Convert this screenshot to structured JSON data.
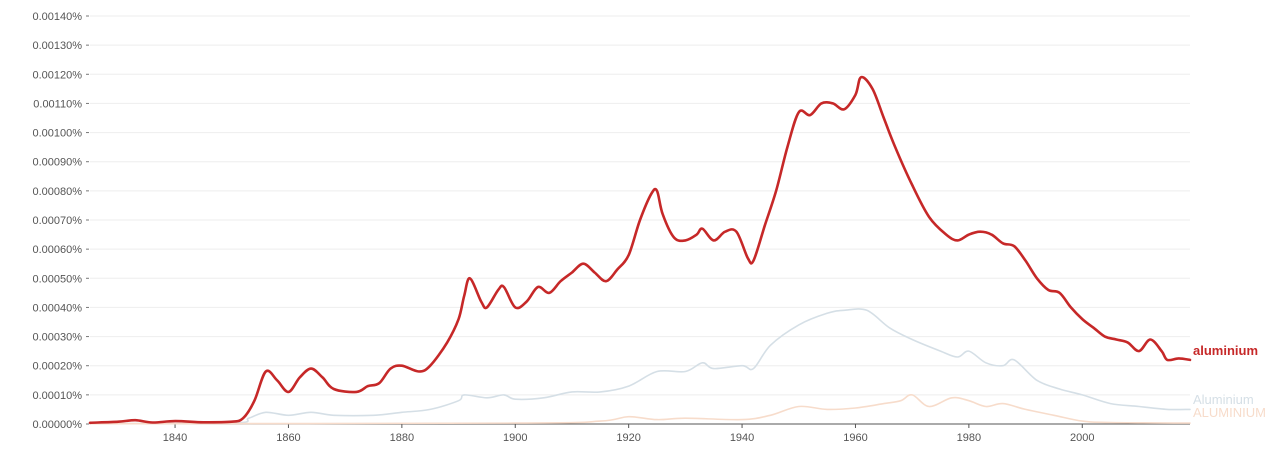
{
  "chart_data": {
    "type": "line",
    "xlim": [
      1825,
      2019
    ],
    "ylim": [
      0,
      0.0014
    ],
    "grid": true,
    "y_ticks": [
      {
        "value": 0,
        "label": "0.00000%"
      },
      {
        "value": 0.0001,
        "label": "0.00010%"
      },
      {
        "value": 0.0002,
        "label": "0.00020%"
      },
      {
        "value": 0.0003,
        "label": "0.00030%"
      },
      {
        "value": 0.0004,
        "label": "0.00040%"
      },
      {
        "value": 0.0005,
        "label": "0.00050%"
      },
      {
        "value": 0.0006,
        "label": "0.00060%"
      },
      {
        "value": 0.0007,
        "label": "0.00070%"
      },
      {
        "value": 0.0008,
        "label": "0.00080%"
      },
      {
        "value": 0.0009,
        "label": "0.00090%"
      },
      {
        "value": 0.001,
        "label": "0.00100%"
      },
      {
        "value": 0.0011,
        "label": "0.00110%"
      },
      {
        "value": 0.0012,
        "label": "0.00120%"
      },
      {
        "value": 0.0013,
        "label": "0.00130%"
      },
      {
        "value": 0.0014,
        "label": "0.00140%"
      }
    ],
    "x_ticks": [
      {
        "value": 1840,
        "label": "1840"
      },
      {
        "value": 1860,
        "label": "1860"
      },
      {
        "value": 1880,
        "label": "1880"
      },
      {
        "value": 1900,
        "label": "1900"
      },
      {
        "value": 1920,
        "label": "1920"
      },
      {
        "value": 1940,
        "label": "1940"
      },
      {
        "value": 1960,
        "label": "1960"
      },
      {
        "value": 1980,
        "label": "1980"
      },
      {
        "value": 2000,
        "label": "2000"
      }
    ],
    "series": [
      {
        "name": "aluminium",
        "color": "#c62828",
        "points": [
          [
            1825,
            4e-06
          ],
          [
            1830,
            8e-06
          ],
          [
            1833,
            1.3e-05
          ],
          [
            1836,
            5e-06
          ],
          [
            1840,
            1e-05
          ],
          [
            1845,
            6e-06
          ],
          [
            1850,
            8e-06
          ],
          [
            1852,
            2e-05
          ],
          [
            1854,
            8e-05
          ],
          [
            1856,
            0.00018
          ],
          [
            1858,
            0.00015
          ],
          [
            1860,
            0.00011
          ],
          [
            1862,
            0.00016
          ],
          [
            1864,
            0.00019
          ],
          [
            1866,
            0.00016
          ],
          [
            1868,
            0.00012
          ],
          [
            1872,
            0.00011
          ],
          [
            1874,
            0.00013
          ],
          [
            1876,
            0.00014
          ],
          [
            1878,
            0.00019
          ],
          [
            1880,
            0.0002
          ],
          [
            1883,
            0.00018
          ],
          [
            1885,
            0.0002
          ],
          [
            1888,
            0.00028
          ],
          [
            1890,
            0.00036
          ],
          [
            1891,
            0.00044
          ],
          [
            1892,
            0.0005
          ],
          [
            1894,
            0.00042
          ],
          [
            1895,
            0.0004
          ],
          [
            1897,
            0.00046
          ],
          [
            1898,
            0.00047
          ],
          [
            1900,
            0.0004
          ],
          [
            1902,
            0.00042
          ],
          [
            1904,
            0.00047
          ],
          [
            1906,
            0.00045
          ],
          [
            1908,
            0.00049
          ],
          [
            1910,
            0.00052
          ],
          [
            1912,
            0.00055
          ],
          [
            1914,
            0.00052
          ],
          [
            1916,
            0.00049
          ],
          [
            1918,
            0.00053
          ],
          [
            1920,
            0.00058
          ],
          [
            1922,
            0.0007
          ],
          [
            1924,
            0.00079
          ],
          [
            1925,
            0.0008
          ],
          [
            1926,
            0.00072
          ],
          [
            1928,
            0.00064
          ],
          [
            1930,
            0.00063
          ],
          [
            1932,
            0.00065
          ],
          [
            1933,
            0.00067
          ],
          [
            1935,
            0.00063
          ],
          [
            1937,
            0.00066
          ],
          [
            1939,
            0.00066
          ],
          [
            1941,
            0.00057
          ],
          [
            1942,
            0.00056
          ],
          [
            1944,
            0.00068
          ],
          [
            1946,
            0.0008
          ],
          [
            1948,
            0.00095
          ],
          [
            1950,
            0.00107
          ],
          [
            1952,
            0.00106
          ],
          [
            1954,
            0.0011
          ],
          [
            1956,
            0.0011
          ],
          [
            1958,
            0.00108
          ],
          [
            1960,
            0.00113
          ],
          [
            1961,
            0.00119
          ],
          [
            1963,
            0.00115
          ],
          [
            1965,
            0.00105
          ],
          [
            1967,
            0.00095
          ],
          [
            1970,
            0.00082
          ],
          [
            1973,
            0.00071
          ],
          [
            1976,
            0.00065
          ],
          [
            1978,
            0.00063
          ],
          [
            1980,
            0.00065
          ],
          [
            1982,
            0.00066
          ],
          [
            1984,
            0.00065
          ],
          [
            1986,
            0.00062
          ],
          [
            1988,
            0.00061
          ],
          [
            1990,
            0.00056
          ],
          [
            1992,
            0.0005
          ],
          [
            1994,
            0.00046
          ],
          [
            1996,
            0.00045
          ],
          [
            1998,
            0.0004
          ],
          [
            2000,
            0.00036
          ],
          [
            2002,
            0.00033
          ],
          [
            2004,
            0.0003
          ],
          [
            2006,
            0.00029
          ],
          [
            2008,
            0.00028
          ],
          [
            2010,
            0.00025
          ],
          [
            2012,
            0.00029
          ],
          [
            2014,
            0.00025
          ],
          [
            2015,
            0.00022
          ],
          [
            2017,
            0.000225
          ],
          [
            2019,
            0.00022
          ]
        ]
      },
      {
        "name": "Aluminium",
        "color": "#d5dfe6",
        "points": [
          [
            1825,
            2e-06
          ],
          [
            1850,
            3e-06
          ],
          [
            1853,
            2e-05
          ],
          [
            1856,
            4e-05
          ],
          [
            1860,
            3e-05
          ],
          [
            1864,
            4e-05
          ],
          [
            1868,
            3e-05
          ],
          [
            1875,
            3e-05
          ],
          [
            1880,
            4e-05
          ],
          [
            1885,
            5e-05
          ],
          [
            1890,
            8e-05
          ],
          [
            1891,
            0.0001
          ],
          [
            1895,
            9e-05
          ],
          [
            1898,
            0.0001
          ],
          [
            1900,
            8.5e-05
          ],
          [
            1905,
            9e-05
          ],
          [
            1910,
            0.00011
          ],
          [
            1915,
            0.00011
          ],
          [
            1920,
            0.00013
          ],
          [
            1925,
            0.00018
          ],
          [
            1930,
            0.00018
          ],
          [
            1933,
            0.00021
          ],
          [
            1935,
            0.00019
          ],
          [
            1940,
            0.0002
          ],
          [
            1942,
            0.00019
          ],
          [
            1945,
            0.00027
          ],
          [
            1950,
            0.00034
          ],
          [
            1955,
            0.00038
          ],
          [
            1958,
            0.00039
          ],
          [
            1962,
            0.00039
          ],
          [
            1966,
            0.00033
          ],
          [
            1970,
            0.00029
          ],
          [
            1975,
            0.00025
          ],
          [
            1978,
            0.00023
          ],
          [
            1980,
            0.00025
          ],
          [
            1983,
            0.00021
          ],
          [
            1986,
            0.0002
          ],
          [
            1988,
            0.00022
          ],
          [
            1992,
            0.00015
          ],
          [
            1996,
            0.00012
          ],
          [
            2000,
            0.0001
          ],
          [
            2005,
            7e-05
          ],
          [
            2010,
            6e-05
          ],
          [
            2015,
            5e-05
          ],
          [
            2019,
            5e-05
          ]
        ]
      },
      {
        "name": "ALUMINIUM",
        "color": "#f7dccb",
        "points": [
          [
            1825,
            1e-06
          ],
          [
            1900,
            3e-06
          ],
          [
            1915,
            1e-05
          ],
          [
            1920,
            2.5e-05
          ],
          [
            1925,
            1.5e-05
          ],
          [
            1930,
            2e-05
          ],
          [
            1940,
            1.5e-05
          ],
          [
            1945,
            3e-05
          ],
          [
            1950,
            6e-05
          ],
          [
            1955,
            5e-05
          ],
          [
            1960,
            5.5e-05
          ],
          [
            1965,
            7e-05
          ],
          [
            1968,
            8e-05
          ],
          [
            1970,
            0.0001
          ],
          [
            1973,
            6e-05
          ],
          [
            1977,
            9e-05
          ],
          [
            1980,
            8e-05
          ],
          [
            1983,
            6e-05
          ],
          [
            1986,
            7e-05
          ],
          [
            1990,
            5e-05
          ],
          [
            1995,
            3e-05
          ],
          [
            2000,
            1e-05
          ],
          [
            2005,
            5e-06
          ],
          [
            2019,
            3e-06
          ]
        ]
      }
    ]
  }
}
